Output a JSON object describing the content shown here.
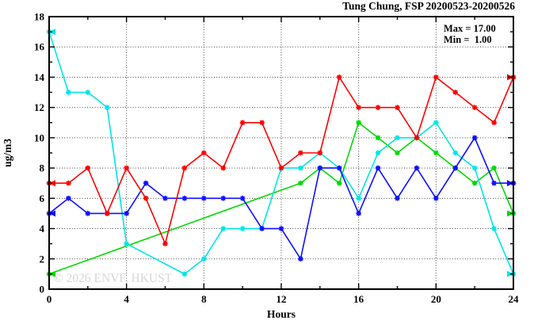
{
  "chart_data": {
    "type": "line",
    "title": "Tung Chung, FSP 20200523-20200526",
    "xlabel": "Hours",
    "ylabel": "ug/m3",
    "watermark": "© 2026 ENVF, HKUST",
    "legend": {
      "max_label": "Max = 17.00",
      "min_label": "Min =  1.00"
    },
    "max_value": 17.0,
    "min_value": 1.0,
    "xlim": [
      0,
      24
    ],
    "ylim": [
      0,
      18
    ],
    "x_ticks": [
      0,
      4,
      8,
      12,
      16,
      20,
      24
    ],
    "x_minor_ticks": [
      2,
      6,
      10,
      14,
      18,
      22
    ],
    "y_ticks": [
      0,
      2,
      4,
      6,
      8,
      10,
      12,
      14,
      16,
      18
    ],
    "y_minor_ticks": [
      1,
      3,
      5,
      7,
      9,
      11,
      13,
      15,
      17
    ],
    "grid": true,
    "hours": [
      0,
      1,
      2,
      3,
      4,
      5,
      6,
      7,
      8,
      9,
      10,
      11,
      12,
      13,
      14,
      15,
      16,
      17,
      18,
      19,
      20,
      21,
      22,
      23,
      24
    ],
    "series": [
      {
        "name": "series-green",
        "color": "#00d900",
        "values": [
          1,
          null,
          null,
          null,
          null,
          null,
          null,
          null,
          null,
          null,
          null,
          null,
          null,
          7,
          8,
          7,
          11,
          10,
          9,
          10,
          9,
          8,
          7,
          8,
          5
        ]
      },
      {
        "name": "series-cyan",
        "color": "#00e5e5",
        "values": [
          17,
          13,
          13,
          12,
          3,
          null,
          null,
          1,
          2,
          4,
          4,
          4,
          8,
          8,
          9,
          8,
          6,
          9,
          10,
          10,
          11,
          9,
          8,
          4,
          1
        ]
      },
      {
        "name": "series-blue",
        "color": "#0f0fff",
        "values": [
          5,
          6,
          5,
          5,
          5,
          7,
          6,
          6,
          6,
          6,
          6,
          4,
          4,
          2,
          8,
          8,
          5,
          8,
          6,
          8,
          6,
          8,
          10,
          7,
          7
        ]
      },
      {
        "name": "series-red",
        "color": "#ff0000",
        "values": [
          7,
          7,
          8,
          5,
          8,
          6,
          3,
          8,
          9,
          8,
          11,
          11,
          8,
          9,
          9,
          14,
          12,
          12,
          12,
          10,
          14,
          13,
          12,
          11,
          14
        ]
      }
    ]
  }
}
